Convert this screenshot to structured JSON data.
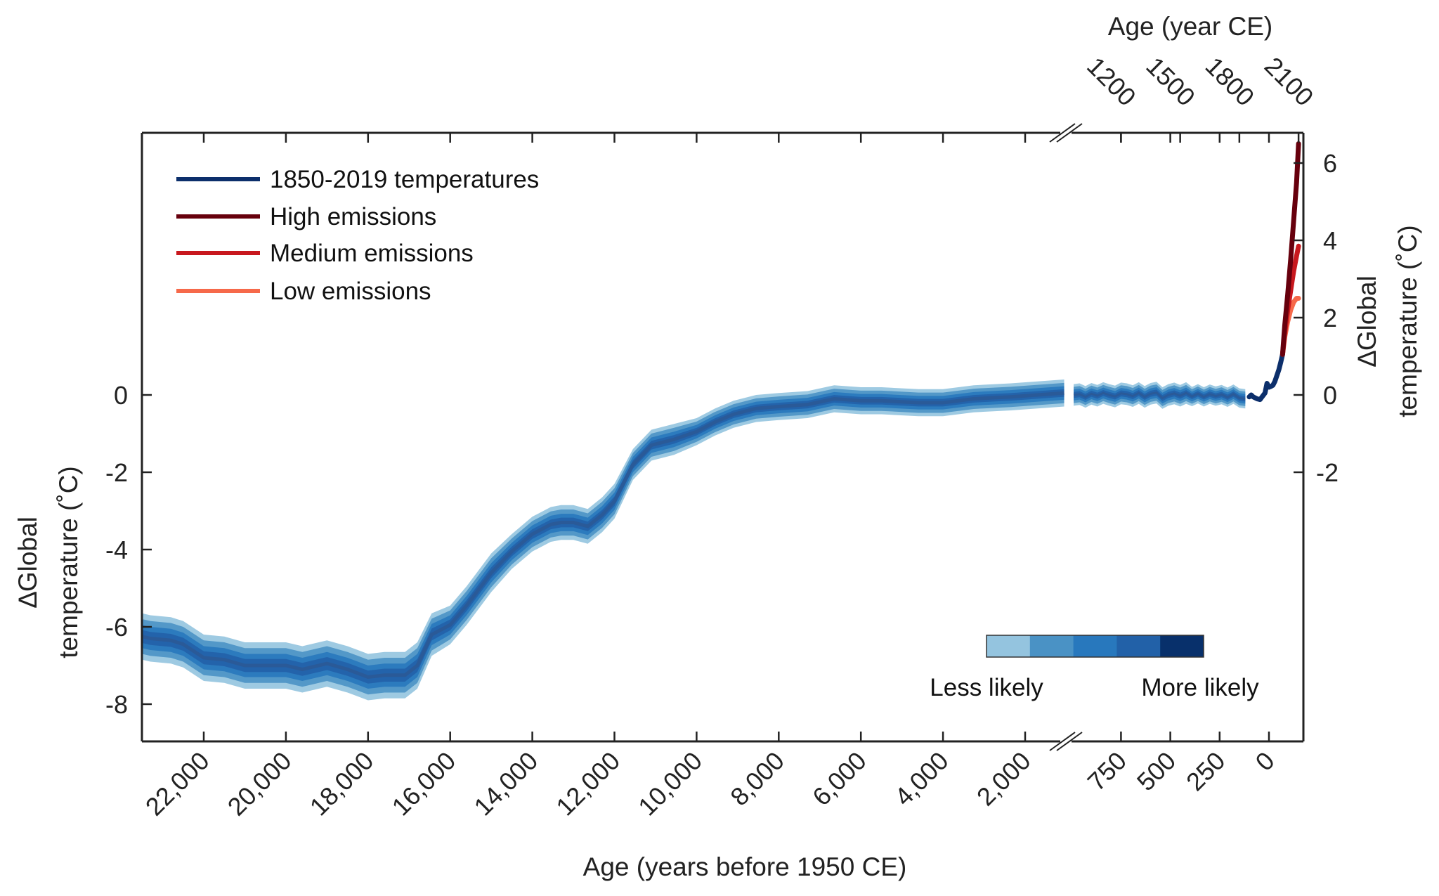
{
  "chart_data": {
    "type": "line",
    "xlabel": "Age (years before 1950 CE)",
    "xlabel_top": "Age (year CE)",
    "ylabel_left": [
      "∆Global",
      "temperature (˚C)"
    ],
    "ylabel_right": [
      "∆Global",
      "temperature (˚C)"
    ],
    "x_axis_broken": true,
    "x_break_between": [
      2000,
      1000
    ],
    "x_ticks_left_segment": [
      "22,000",
      "20,000",
      "18,000",
      "16,000",
      "14,000",
      "12,000",
      "10,000",
      "8,000",
      "6,000",
      "4,000",
      "2,000"
    ],
    "x_tick_values_left_segment": [
      22000,
      20000,
      18000,
      16000,
      14000,
      12000,
      10000,
      8000,
      6000,
      4000,
      2000
    ],
    "x_ticks_right_segment": [
      "750",
      "500",
      "250",
      "0"
    ],
    "x_tick_values_right_segment": [
      750,
      500,
      250,
      0
    ],
    "x_ticks_top": [
      "1200",
      "1500",
      "1800",
      "2100"
    ],
    "x_tick_values_top_ce": [
      1200,
      1500,
      1800,
      2100
    ],
    "y_ticks_left": [
      "0",
      "-2",
      "-4",
      "-6",
      "-8"
    ],
    "y_tick_values_left": [
      0,
      -2,
      -4,
      -6,
      -8
    ],
    "y_ticks_right": [
      "6",
      "4",
      "2",
      "0",
      "-2"
    ],
    "y_tick_values_right": [
      6,
      4,
      2,
      0,
      -2
    ],
    "ylim": [
      -9,
      6.8
    ],
    "xlim_years_bp": [
      23500,
      -150
    ],
    "grid": false,
    "legend_position": "top-left",
    "legend": [
      {
        "label": "1850-2019 temperatures",
        "color": "#0c2f6b"
      },
      {
        "label": "High emissions",
        "color": "#67000d"
      },
      {
        "label": "Medium emissions",
        "color": "#c8181e"
      },
      {
        "label": "Low emissions",
        "color": "#f6694a"
      }
    ],
    "likelihood_scale": {
      "low_label": "Less likely",
      "high_label": "More likely",
      "colors": [
        "#94c4df",
        "#4a92c5",
        "#2878bd",
        "#2261a8",
        "#08306b"
      ]
    },
    "reconstruction": {
      "line_color": "#2a5a98",
      "segments": [
        {
          "age_bp": [
            23500,
            23300,
            22800,
            22500,
            22000,
            21500,
            21000,
            20000,
            19600,
            19000,
            18500,
            18000,
            17600,
            17100,
            16800,
            16450,
            16000,
            15600,
            15000,
            14500,
            14000,
            13550,
            13300,
            13000,
            12650,
            12300,
            12000,
            11550,
            11100,
            10550,
            10000,
            9550,
            9100,
            8550,
            8000,
            7300,
            6650,
            6000,
            5500,
            4600,
            4000,
            3250,
            2350,
            1050
          ],
          "temperature": [
            -6.25,
            -6.3,
            -6.35,
            -6.45,
            -6.8,
            -6.85,
            -7.0,
            -7.0,
            -7.1,
            -6.95,
            -7.1,
            -7.3,
            -7.25,
            -7.25,
            -7.0,
            -6.2,
            -5.95,
            -5.45,
            -4.6,
            -4.05,
            -3.6,
            -3.35,
            -3.3,
            -3.3,
            -3.4,
            -3.1,
            -2.75,
            -1.8,
            -1.3,
            -1.15,
            -0.95,
            -0.7,
            -0.5,
            -0.35,
            -0.3,
            -0.25,
            -0.1,
            -0.15,
            -0.15,
            -0.2,
            -0.2,
            -0.1,
            -0.05,
            0.05
          ],
          "uncertainty": [
            0.6,
            0.6,
            0.6,
            0.6,
            0.6,
            0.6,
            0.6,
            0.6,
            0.6,
            0.6,
            0.6,
            0.6,
            0.6,
            0.6,
            0.6,
            0.55,
            0.5,
            0.5,
            0.5,
            0.45,
            0.45,
            0.45,
            0.45,
            0.45,
            0.45,
            0.45,
            0.45,
            0.4,
            0.4,
            0.4,
            0.35,
            0.35,
            0.35,
            0.35,
            0.35,
            0.35,
            0.35,
            0.35,
            0.35,
            0.35,
            0.35,
            0.35,
            0.35,
            0.35
          ]
        },
        {
          "age_bp": [
            990,
            960,
            930,
            900,
            870,
            840,
            810,
            780,
            750,
            720,
            690,
            660,
            630,
            600,
            570,
            540,
            510,
            480,
            450,
            420,
            390,
            360,
            330,
            300,
            270,
            240,
            210,
            180,
            150,
            120
          ],
          "temperature": [
            0,
            0.02,
            -0.05,
            0.03,
            -0.02,
            0.05,
            0,
            -0.04,
            0.04,
            0.02,
            -0.03,
            0.05,
            -0.05,
            0.03,
            0.06,
            -0.08,
            0,
            0.04,
            -0.02,
            0.05,
            -0.04,
            0.03,
            -0.05,
            0.02,
            -0.03,
            0.01,
            -0.06,
            0.02,
            -0.08,
            -0.1
          ],
          "uncertainty": [
            0.28,
            0.28,
            0.28,
            0.28,
            0.28,
            0.28,
            0.28,
            0.28,
            0.28,
            0.28,
            0.28,
            0.28,
            0.28,
            0.28,
            0.28,
            0.28,
            0.28,
            0.28,
            0.28,
            0.28,
            0.25,
            0.25,
            0.25,
            0.25,
            0.25,
            0.25,
            0.25,
            0.25,
            0.25,
            0.25
          ]
        }
      ]
    },
    "series": [
      {
        "name": "1850-2019 temperatures",
        "age_bp": [
          100,
          90,
          80,
          60,
          45,
          35,
          20,
          10,
          5,
          0,
          -10,
          -20,
          -30,
          -40,
          -50,
          -60,
          -69
        ],
        "temperature": [
          -0.05,
          0,
          -0.05,
          -0.1,
          -0.12,
          -0.05,
          0.05,
          0.3,
          0.25,
          0.2,
          0.22,
          0.25,
          0.35,
          0.5,
          0.65,
          0.85,
          1.05
        ]
      },
      {
        "name": "Low emissions",
        "age_bp": [
          -69,
          -80,
          -95,
          -110,
          -125,
          -140,
          -150
        ],
        "temperature": [
          1.05,
          1.5,
          1.9,
          2.2,
          2.4,
          2.5,
          2.5
        ]
      },
      {
        "name": "Medium emissions",
        "age_bp": [
          -69,
          -80,
          -95,
          -110,
          -125,
          -140,
          -150
        ],
        "temperature": [
          1.05,
          1.6,
          2.2,
          2.7,
          3.2,
          3.6,
          3.85
        ]
      },
      {
        "name": "High emissions",
        "age_bp": [
          -69,
          -80,
          -95,
          -110,
          -125,
          -140,
          -150
        ],
        "temperature": [
          1.05,
          1.8,
          2.6,
          3.5,
          4.5,
          5.5,
          6.5
        ]
      }
    ]
  }
}
